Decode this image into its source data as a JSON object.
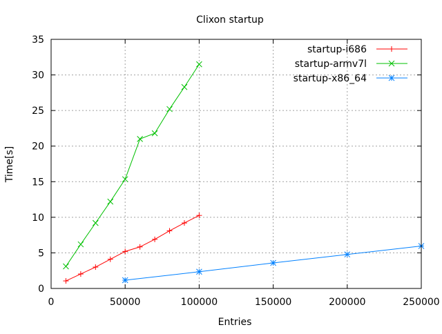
{
  "chart_data": {
    "type": "line",
    "title": "Clixon startup",
    "xlabel": "Entries",
    "ylabel": "Time[s]",
    "xlim": [
      0,
      250000
    ],
    "ylim": [
      0,
      35
    ],
    "xticks": [
      "0",
      "50000",
      "100000",
      "150000",
      "200000",
      "250000"
    ],
    "yticks": [
      "0",
      "5",
      "10",
      "15",
      "20",
      "25",
      "30",
      "35"
    ],
    "grid": true,
    "legend_position": "top-right",
    "series": [
      {
        "name": "startup-i686",
        "color": "#ff0000",
        "marker": "plus",
        "x": [
          10000,
          20000,
          30000,
          40000,
          50000,
          60000,
          70000,
          80000,
          90000,
          100000
        ],
        "y": [
          1.06,
          2.03,
          3.0,
          4.1,
          5.2,
          5.84,
          6.9,
          8.1,
          9.2,
          10.26
        ]
      },
      {
        "name": "startup-armv7l",
        "color": "#00c000",
        "marker": "cross",
        "x": [
          10000,
          20000,
          30000,
          40000,
          50000,
          60000,
          70000,
          80000,
          90000,
          100000
        ],
        "y": [
          3.1,
          6.2,
          9.2,
          12.2,
          15.35,
          21.0,
          21.8,
          25.2,
          28.3,
          31.5
        ]
      },
      {
        "name": "startup-x86_64",
        "color": "#0080ff",
        "marker": "star",
        "x": [
          50000,
          100000,
          150000,
          200000,
          250000
        ],
        "y": [
          1.16,
          2.35,
          3.59,
          4.78,
          5.96
        ]
      }
    ]
  }
}
